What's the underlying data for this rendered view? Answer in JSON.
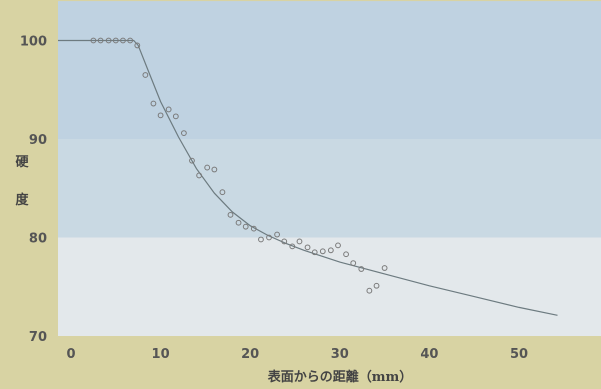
{
  "chart_data": {
    "type": "scatter",
    "ylabel": "硬度",
    "xlabel": "表面からの距離（mm）",
    "xlim": [
      0,
      55
    ],
    "ylim": [
      70,
      104
    ],
    "x_ticks": [
      "0",
      "10",
      "20",
      "30",
      "40",
      "50"
    ],
    "y_ticks": [
      "70",
      "80",
      "90",
      "100"
    ],
    "bands": [
      {
        "from": 70,
        "to": 80,
        "color": "#e3e8eb"
      },
      {
        "from": 80,
        "to": 90,
        "color": "#c9d9e3"
      },
      {
        "from": 90,
        "to": 104,
        "color": "#bfd2e1"
      }
    ],
    "points": [
      {
        "x": 2.5,
        "y": 100
      },
      {
        "x": 3.3,
        "y": 100
      },
      {
        "x": 4.2,
        "y": 100
      },
      {
        "x": 5.0,
        "y": 100
      },
      {
        "x": 5.8,
        "y": 100
      },
      {
        "x": 6.6,
        "y": 100
      },
      {
        "x": 7.4,
        "y": 99.5
      },
      {
        "x": 8.3,
        "y": 96.5
      },
      {
        "x": 9.2,
        "y": 93.6
      },
      {
        "x": 10.0,
        "y": 92.4
      },
      {
        "x": 10.9,
        "y": 93.0
      },
      {
        "x": 11.7,
        "y": 92.3
      },
      {
        "x": 12.6,
        "y": 90.6
      },
      {
        "x": 13.5,
        "y": 87.8
      },
      {
        "x": 14.3,
        "y": 86.3
      },
      {
        "x": 15.2,
        "y": 87.1
      },
      {
        "x": 16.0,
        "y": 86.9
      },
      {
        "x": 16.9,
        "y": 84.6
      },
      {
        "x": 17.8,
        "y": 82.3
      },
      {
        "x": 18.7,
        "y": 81.5
      },
      {
        "x": 19.5,
        "y": 81.1
      },
      {
        "x": 20.4,
        "y": 80.9
      },
      {
        "x": 21.2,
        "y": 79.8
      },
      {
        "x": 22.1,
        "y": 80.0
      },
      {
        "x": 23.0,
        "y": 80.3
      },
      {
        "x": 23.8,
        "y": 79.6
      },
      {
        "x": 24.7,
        "y": 79.1
      },
      {
        "x": 25.5,
        "y": 79.6
      },
      {
        "x": 26.4,
        "y": 79.0
      },
      {
        "x": 27.2,
        "y": 78.5
      },
      {
        "x": 28.1,
        "y": 78.6
      },
      {
        "x": 29.0,
        "y": 78.7
      },
      {
        "x": 29.8,
        "y": 79.2
      },
      {
        "x": 30.7,
        "y": 78.3
      },
      {
        "x": 31.5,
        "y": 77.4
      },
      {
        "x": 32.4,
        "y": 76.8
      },
      {
        "x": 33.3,
        "y": 74.6
      },
      {
        "x": 34.1,
        "y": 75.1
      },
      {
        "x": 35.0,
        "y": 76.9
      }
    ],
    "fit_line": [
      {
        "x": -1.5,
        "y": 100
      },
      {
        "x": 7.0,
        "y": 100
      },
      {
        "x": 7.5,
        "y": 99.5
      },
      {
        "x": 8.5,
        "y": 97.2
      },
      {
        "x": 10.0,
        "y": 93.8
      },
      {
        "x": 12.0,
        "y": 90.2
      },
      {
        "x": 14.0,
        "y": 87.0
      },
      {
        "x": 16.0,
        "y": 84.5
      },
      {
        "x": 18.0,
        "y": 82.6
      },
      {
        "x": 20.0,
        "y": 81.2
      },
      {
        "x": 22.0,
        "y": 80.2
      },
      {
        "x": 24.0,
        "y": 79.4
      },
      {
        "x": 26.0,
        "y": 78.7
      },
      {
        "x": 28.0,
        "y": 78.1
      },
      {
        "x": 30.0,
        "y": 77.5
      },
      {
        "x": 35.0,
        "y": 76.3
      },
      {
        "x": 40.0,
        "y": 75.1
      },
      {
        "x": 45.0,
        "y": 74.0
      },
      {
        "x": 50.0,
        "y": 72.9
      },
      {
        "x": 54.3,
        "y": 72.1
      }
    ],
    "colors": {
      "line": "#6d7b80",
      "marker": "#7a7a7a",
      "background": "#d8d3a3"
    }
  }
}
